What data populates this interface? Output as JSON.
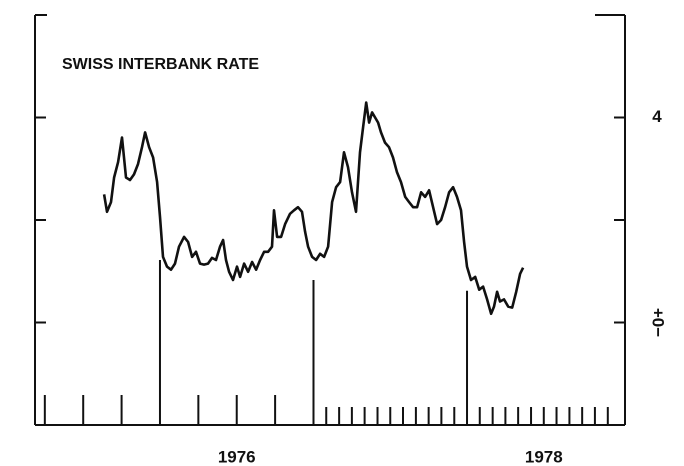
{
  "chart_data": {
    "type": "line",
    "title": "SWISS INTERBANK RATE",
    "xlim": [
      1975.186,
      1979.029
    ],
    "ylim": [
      -2,
      6
    ],
    "yticks": [
      0,
      2,
      4
    ],
    "ytick_labels": [
      "+0−",
      null,
      "4"
    ],
    "xticks": [
      {
        "value": 1976.5,
        "label": "1976"
      },
      {
        "value": 1978.5,
        "label": "1978"
      }
    ],
    "year_markers": [
      {
        "x": 1976,
        "top": 1.22
      },
      {
        "x": 1977,
        "top": 0.83
      },
      {
        "x": 1978,
        "top": 0.62
      }
    ],
    "quarter_ticks": [
      1975.25,
      1975.5,
      1975.75,
      1976.25,
      1976.5,
      1976.75
    ],
    "month_ticks": [
      1977.083,
      1977.167,
      1977.25,
      1977.333,
      1977.417,
      1977.5,
      1977.583,
      1977.667,
      1977.75,
      1977.833,
      1977.917,
      1978.083,
      1978.167,
      1978.25,
      1978.333,
      1978.417,
      1978.5,
      1978.583,
      1978.667,
      1978.75,
      1978.833,
      1978.917
    ],
    "series": [
      {
        "color": "#111111",
        "x": [
          1975.636,
          1975.655,
          1975.681,
          1975.701,
          1975.727,
          1975.753,
          1975.779,
          1975.805,
          1975.831,
          1975.857,
          1975.883,
          1975.903,
          1975.929,
          1975.955,
          1975.981,
          1976.0,
          1976.02,
          1976.046,
          1976.072,
          1976.098,
          1976.124,
          1976.157,
          1976.183,
          1976.209,
          1976.235,
          1976.261,
          1976.287,
          1976.313,
          1976.339,
          1976.365,
          1976.391,
          1976.411,
          1976.43,
          1976.45,
          1976.476,
          1976.502,
          1976.522,
          1976.548,
          1976.574,
          1976.6,
          1976.626,
          1976.652,
          1976.678,
          1976.704,
          1976.73,
          1976.743,
          1976.763,
          1976.789,
          1976.815,
          1976.847,
          1976.873,
          1976.899,
          1976.925,
          1976.945,
          1976.965,
          1976.991,
          1977.017,
          1977.043,
          1977.069,
          1977.095,
          1977.121,
          1977.147,
          1977.173,
          1977.199,
          1977.225,
          1977.251,
          1977.277,
          1977.303,
          1977.323,
          1977.343,
          1977.362,
          1977.382,
          1977.401,
          1977.421,
          1977.44,
          1977.466,
          1977.492,
          1977.518,
          1977.544,
          1977.57,
          1977.597,
          1977.623,
          1977.649,
          1977.675,
          1977.701,
          1977.727,
          1977.753,
          1977.779,
          1977.805,
          1977.831,
          1977.857,
          1977.883,
          1977.909,
          1977.935,
          1977.961,
          1977.981,
          1978.0,
          1978.026,
          1978.053,
          1978.079,
          1978.105,
          1978.131,
          1978.157,
          1978.176,
          1978.196,
          1978.215,
          1978.241,
          1978.268,
          1978.294,
          1978.32,
          1978.346,
          1978.365
        ],
        "values": [
          2.5,
          2.16,
          2.35,
          2.83,
          3.13,
          3.61,
          2.83,
          2.78,
          2.89,
          3.09,
          3.42,
          3.71,
          3.42,
          3.22,
          2.74,
          2.06,
          1.28,
          1.09,
          1.03,
          1.15,
          1.48,
          1.67,
          1.57,
          1.28,
          1.38,
          1.15,
          1.13,
          1.15,
          1.26,
          1.22,
          1.48,
          1.61,
          1.22,
          0.99,
          0.83,
          1.09,
          0.89,
          1.15,
          0.99,
          1.18,
          1.03,
          1.22,
          1.38,
          1.38,
          1.48,
          2.19,
          1.67,
          1.67,
          1.92,
          2.12,
          2.19,
          2.25,
          2.16,
          1.77,
          1.48,
          1.28,
          1.22,
          1.34,
          1.28,
          1.48,
          2.35,
          2.64,
          2.74,
          3.32,
          3.03,
          2.54,
          2.16,
          3.32,
          3.81,
          4.29,
          3.9,
          4.1,
          4.0,
          3.9,
          3.71,
          3.51,
          3.42,
          3.22,
          2.93,
          2.74,
          2.45,
          2.35,
          2.25,
          2.25,
          2.54,
          2.45,
          2.58,
          2.25,
          1.92,
          2.0,
          2.25,
          2.54,
          2.64,
          2.45,
          2.19,
          1.57,
          1.09,
          0.83,
          0.89,
          0.64,
          0.7,
          0.45,
          0.17,
          0.31,
          0.6,
          0.41,
          0.45,
          0.31,
          0.29,
          0.6,
          0.95,
          1.07
        ]
      }
    ]
  }
}
